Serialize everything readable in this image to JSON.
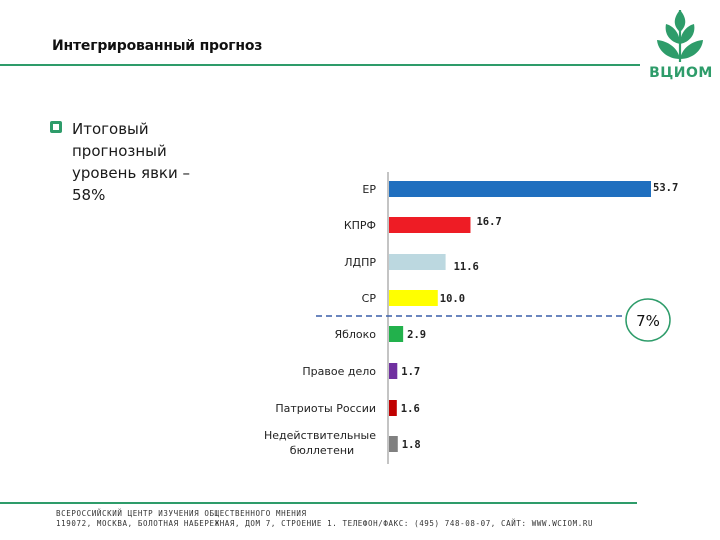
{
  "header": {
    "title": "Интегрированный прогноз",
    "logo_text": "ВЦИОМ"
  },
  "bullet": {
    "text": "Итоговый прогнозный уровень явки – 58%"
  },
  "chart_data": {
    "type": "bar",
    "orientation": "horizontal",
    "categories": [
      "ЕР",
      "КПРФ",
      "ЛДПР",
      "СР",
      "Яблоко",
      "Правое дело",
      "Патриоты России",
      "Недействительные бюллетени"
    ],
    "values": [
      53.7,
      16.7,
      11.6,
      10.0,
      2.9,
      1.7,
      1.6,
      1.8
    ],
    "value_labels": [
      "53.7",
      "16.7",
      "11.6",
      "10.0",
      "2.9",
      "1.7",
      "1.6",
      "1.8"
    ],
    "colors": [
      "#1f6fbf",
      "#ee1c25",
      "#bcd8e0",
      "#ffff00",
      "#22b14c",
      "#7030a0",
      "#c00000",
      "#808080"
    ],
    "threshold_label": "7%",
    "threshold_line": "dashed, between СР and Яблоко",
    "title": "",
    "xlabel": "",
    "ylabel": "",
    "xlim": [
      0,
      53.7
    ],
    "grid": false,
    "legend": "none"
  },
  "footer": {
    "line1": "ВСЕРОССИЙСКИЙ ЦЕНТР ИЗУЧЕНИЯ ОБЩЕСТВЕННОГО МНЕНИЯ",
    "line2": "119072, МОСКВА, БОЛОТНАЯ НАБЕРЕЖНАЯ, ДОМ 7, СТРОЕНИЕ 1. ТЕЛЕФОН/ФАКС: (495) 748-08-07, САЙТ: WWW.WCIOM.RU"
  },
  "colors": {
    "brand_green": "#2e9c6a",
    "threshold_dash": "#3a5fa8"
  }
}
